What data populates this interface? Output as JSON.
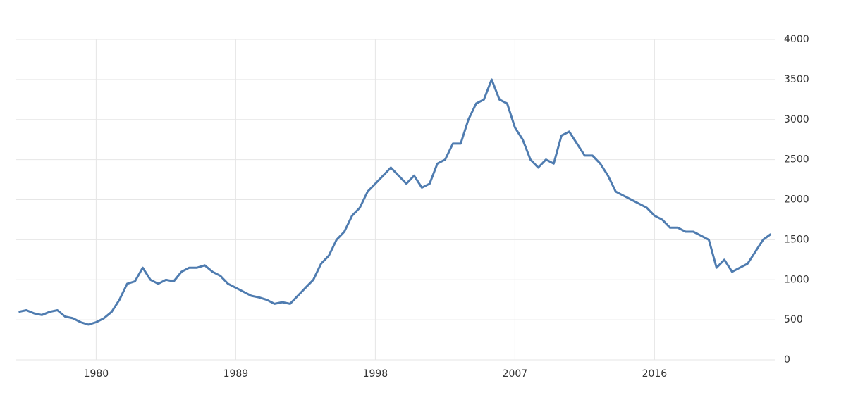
{
  "chart_data": {
    "type": "line",
    "x": [
      1975,
      1975.5,
      1976,
      1976.5,
      1977,
      1977.5,
      1978,
      1978.5,
      1979,
      1979.5,
      1980,
      1980.5,
      1981,
      1981.5,
      1982,
      1982.5,
      1983,
      1983.5,
      1984,
      1984.5,
      1985,
      1985.5,
      1986,
      1986.5,
      1987,
      1987.5,
      1988,
      1988.5,
      1989,
      1989.5,
      1990,
      1990.5,
      1991,
      1991.5,
      1992,
      1992.5,
      1993,
      1993.5,
      1994,
      1994.5,
      1995,
      1995.5,
      1996,
      1996.5,
      1997,
      1997.5,
      1998,
      1998.5,
      1999,
      1999.5,
      2000,
      2000.5,
      2001,
      2001.5,
      2002,
      2002.5,
      2003,
      2003.5,
      2004,
      2004.5,
      2005,
      2005.5,
      2006,
      2006.5,
      2007,
      2007.5,
      2008,
      2008.5,
      2009,
      2009.5,
      2010,
      2010.5,
      2011,
      2011.5,
      2012,
      2012.5,
      2013,
      2013.5,
      2014,
      2014.5,
      2015,
      2015.5,
      2016,
      2016.5,
      2017,
      2017.5,
      2018,
      2018.5,
      2019,
      2019.5,
      2020,
      2020.5,
      2021,
      2021.5,
      2022,
      2022.5,
      2023,
      2023.5
    ],
    "series": [
      {
        "color": "#4f7cb0",
        "values": [
          600,
          620,
          580,
          560,
          600,
          620,
          540,
          520,
          470,
          440,
          470,
          520,
          600,
          750,
          950,
          980,
          1150,
          1000,
          950,
          1000,
          980,
          1100,
          1150,
          1150,
          1180,
          1100,
          1050,
          950,
          900,
          850,
          800,
          780,
          750,
          700,
          720,
          700,
          800,
          900,
          1000,
          1200,
          1300,
          1500,
          1600,
          1800,
          1900,
          2100,
          2200,
          2300,
          2400,
          2300,
          2200,
          2300,
          2150,
          2200,
          2450,
          2500,
          2700,
          2700,
          3000,
          3200,
          3250,
          3500,
          3250,
          3200,
          2900,
          2750,
          2500,
          2400,
          2500,
          2450,
          2800,
          2850,
          2700,
          2550,
          2550,
          2450,
          2300,
          2100,
          2050,
          2000,
          1950,
          1900,
          1800,
          1750,
          1650,
          1650,
          1600,
          1600,
          1550,
          1500,
          1150,
          1250,
          1100,
          1150,
          1200,
          1350,
          1500,
          1570
        ]
      }
    ],
    "xlim": [
      1974.8,
      2023.8
    ],
    "xticks": [
      1980,
      1989,
      1998,
      2007,
      2016
    ],
    "ylim": [
      0,
      4000
    ],
    "yticks": [
      0,
      500,
      1000,
      1500,
      2000,
      2500,
      3000,
      3500,
      4000
    ],
    "grid": true
  }
}
